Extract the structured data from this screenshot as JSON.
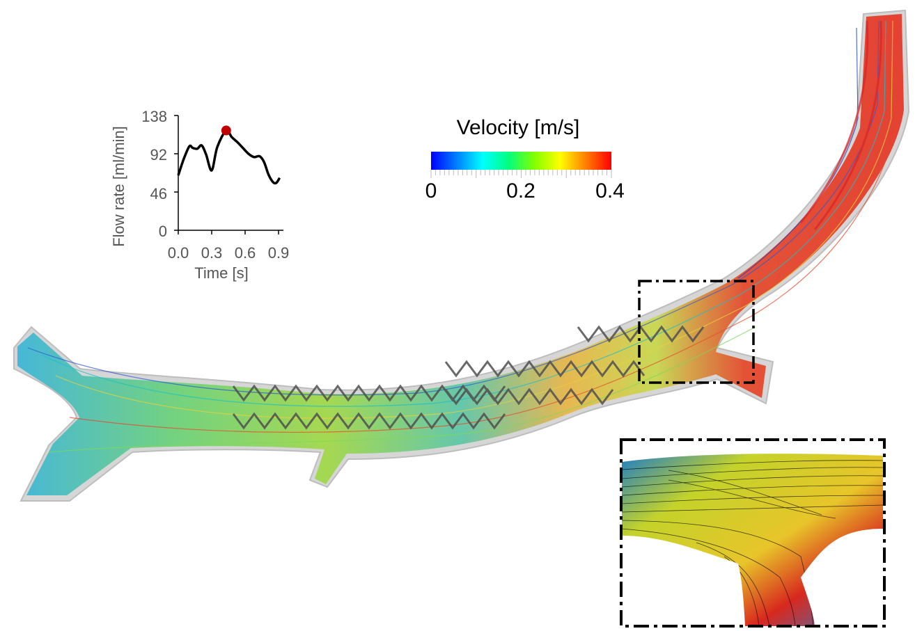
{
  "flow_chart": {
    "ylabel": "Flow rate [ml/min]",
    "xlabel": "Time [s]",
    "yticks": [
      "138",
      "92",
      "46",
      "0"
    ],
    "xticks": [
      "0.0",
      "0.3",
      "0.6",
      "0.9"
    ],
    "marker_color": "#c00000",
    "line_color": "#000000"
  },
  "chart_data": {
    "type": "line",
    "title": "",
    "xlabel": "Time [s]",
    "ylabel": "Flow rate [ml/min]",
    "xlim": [
      0.0,
      0.9
    ],
    "ylim": [
      0,
      138
    ],
    "x": [
      0.0,
      0.05,
      0.1,
      0.13,
      0.17,
      0.21,
      0.25,
      0.3,
      0.35,
      0.43,
      0.48,
      0.53,
      0.58,
      0.63,
      0.68,
      0.73,
      0.77,
      0.81,
      0.85,
      0.88,
      0.91
    ],
    "series": [
      {
        "values": [
          66,
          86,
          101,
          99,
          98,
          102,
          91,
          72,
          100,
          120,
          112,
          106,
          99,
          92,
          88,
          89,
          82,
          67,
          58,
          57,
          63
        ]
      }
    ],
    "highlight_point": {
      "x": 0.43,
      "y": 120
    },
    "grid": false
  },
  "colorbar": {
    "title": "Velocity [m/s]",
    "tick_labels": [
      "0",
      "0.2",
      "0.4"
    ],
    "min": 0,
    "max": 0.4,
    "colormap": [
      "#0000ff",
      "#0080ff",
      "#00ffff",
      "#00ff80",
      "#80ff00",
      "#ffff00",
      "#ff8000",
      "#ff0000"
    ]
  },
  "colors": {
    "stent": "#505050",
    "vessel_wall": "#c8c8c8",
    "box_line": "#000000"
  }
}
